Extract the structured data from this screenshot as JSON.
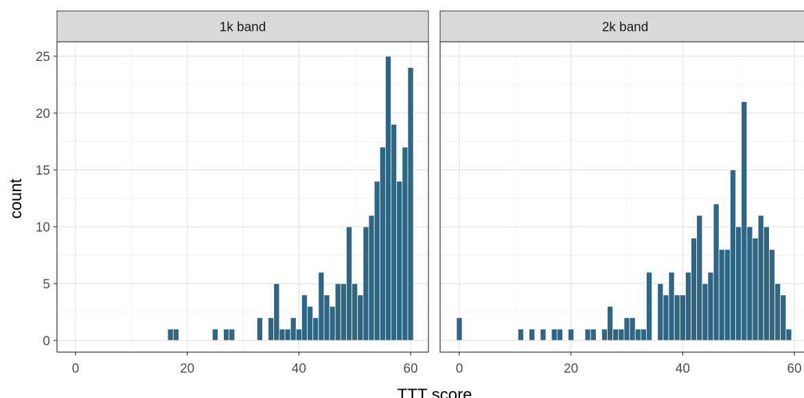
{
  "chart_data": {
    "type": "bar",
    "xlabel": "TTT score",
    "ylabel": "count",
    "ylim": [
      0,
      25
    ],
    "yticks": [
      0,
      5,
      10,
      15,
      20,
      25
    ],
    "xticks": [
      0,
      20,
      40,
      60
    ],
    "bar_color": "#2e6683",
    "strip_color": "#d9d9d9",
    "panels": [
      {
        "label": "1k band",
        "xlim": [
          0,
          60
        ],
        "bins": [
          {
            "x": 17,
            "y": 1
          },
          {
            "x": 18,
            "y": 1
          },
          {
            "x": 25,
            "y": 1
          },
          {
            "x": 27,
            "y": 1
          },
          {
            "x": 28,
            "y": 1
          },
          {
            "x": 33,
            "y": 2
          },
          {
            "x": 35,
            "y": 2
          },
          {
            "x": 36,
            "y": 5
          },
          {
            "x": 37,
            "y": 1
          },
          {
            "x": 38,
            "y": 1
          },
          {
            "x": 39,
            "y": 2
          },
          {
            "x": 40,
            "y": 1
          },
          {
            "x": 41,
            "y": 4
          },
          {
            "x": 42,
            "y": 3
          },
          {
            "x": 43,
            "y": 2
          },
          {
            "x": 44,
            "y": 6
          },
          {
            "x": 45,
            "y": 4
          },
          {
            "x": 46,
            "y": 3
          },
          {
            "x": 47,
            "y": 5
          },
          {
            "x": 48,
            "y": 5
          },
          {
            "x": 49,
            "y": 10
          },
          {
            "x": 50,
            "y": 5
          },
          {
            "x": 51,
            "y": 4
          },
          {
            "x": 52,
            "y": 10
          },
          {
            "x": 53,
            "y": 11
          },
          {
            "x": 54,
            "y": 14
          },
          {
            "x": 55,
            "y": 17
          },
          {
            "x": 56,
            "y": 25
          },
          {
            "x": 57,
            "y": 19
          },
          {
            "x": 58,
            "y": 14
          },
          {
            "x": 59,
            "y": 17
          },
          {
            "x": 60,
            "y": 24
          }
        ]
      },
      {
        "label": "2k band",
        "xlim": [
          0,
          60
        ],
        "bins": [
          {
            "x": 0,
            "y": 2
          },
          {
            "x": 11,
            "y": 1
          },
          {
            "x": 13,
            "y": 1
          },
          {
            "x": 15,
            "y": 1
          },
          {
            "x": 17,
            "y": 1
          },
          {
            "x": 18,
            "y": 1
          },
          {
            "x": 20,
            "y": 1
          },
          {
            "x": 23,
            "y": 1
          },
          {
            "x": 24,
            "y": 1
          },
          {
            "x": 26,
            "y": 1
          },
          {
            "x": 27,
            "y": 3
          },
          {
            "x": 28,
            "y": 1
          },
          {
            "x": 29,
            "y": 1
          },
          {
            "x": 30,
            "y": 2
          },
          {
            "x": 31,
            "y": 2
          },
          {
            "x": 32,
            "y": 1
          },
          {
            "x": 33,
            "y": 1
          },
          {
            "x": 34,
            "y": 6
          },
          {
            "x": 36,
            "y": 5
          },
          {
            "x": 37,
            "y": 4
          },
          {
            "x": 38,
            "y": 6
          },
          {
            "x": 39,
            "y": 4
          },
          {
            "x": 40,
            "y": 4
          },
          {
            "x": 41,
            "y": 6
          },
          {
            "x": 42,
            "y": 9
          },
          {
            "x": 43,
            "y": 11
          },
          {
            "x": 44,
            "y": 5
          },
          {
            "x": 45,
            "y": 6
          },
          {
            "x": 46,
            "y": 12
          },
          {
            "x": 47,
            "y": 8
          },
          {
            "x": 48,
            "y": 8
          },
          {
            "x": 49,
            "y": 15
          },
          {
            "x": 50,
            "y": 10
          },
          {
            "x": 51,
            "y": 21
          },
          {
            "x": 52,
            "y": 10
          },
          {
            "x": 53,
            "y": 9
          },
          {
            "x": 54,
            "y": 11
          },
          {
            "x": 55,
            "y": 10
          },
          {
            "x": 56,
            "y": 8
          },
          {
            "x": 57,
            "y": 5
          },
          {
            "x": 58,
            "y": 4
          },
          {
            "x": 59,
            "y": 1
          }
        ]
      }
    ]
  }
}
